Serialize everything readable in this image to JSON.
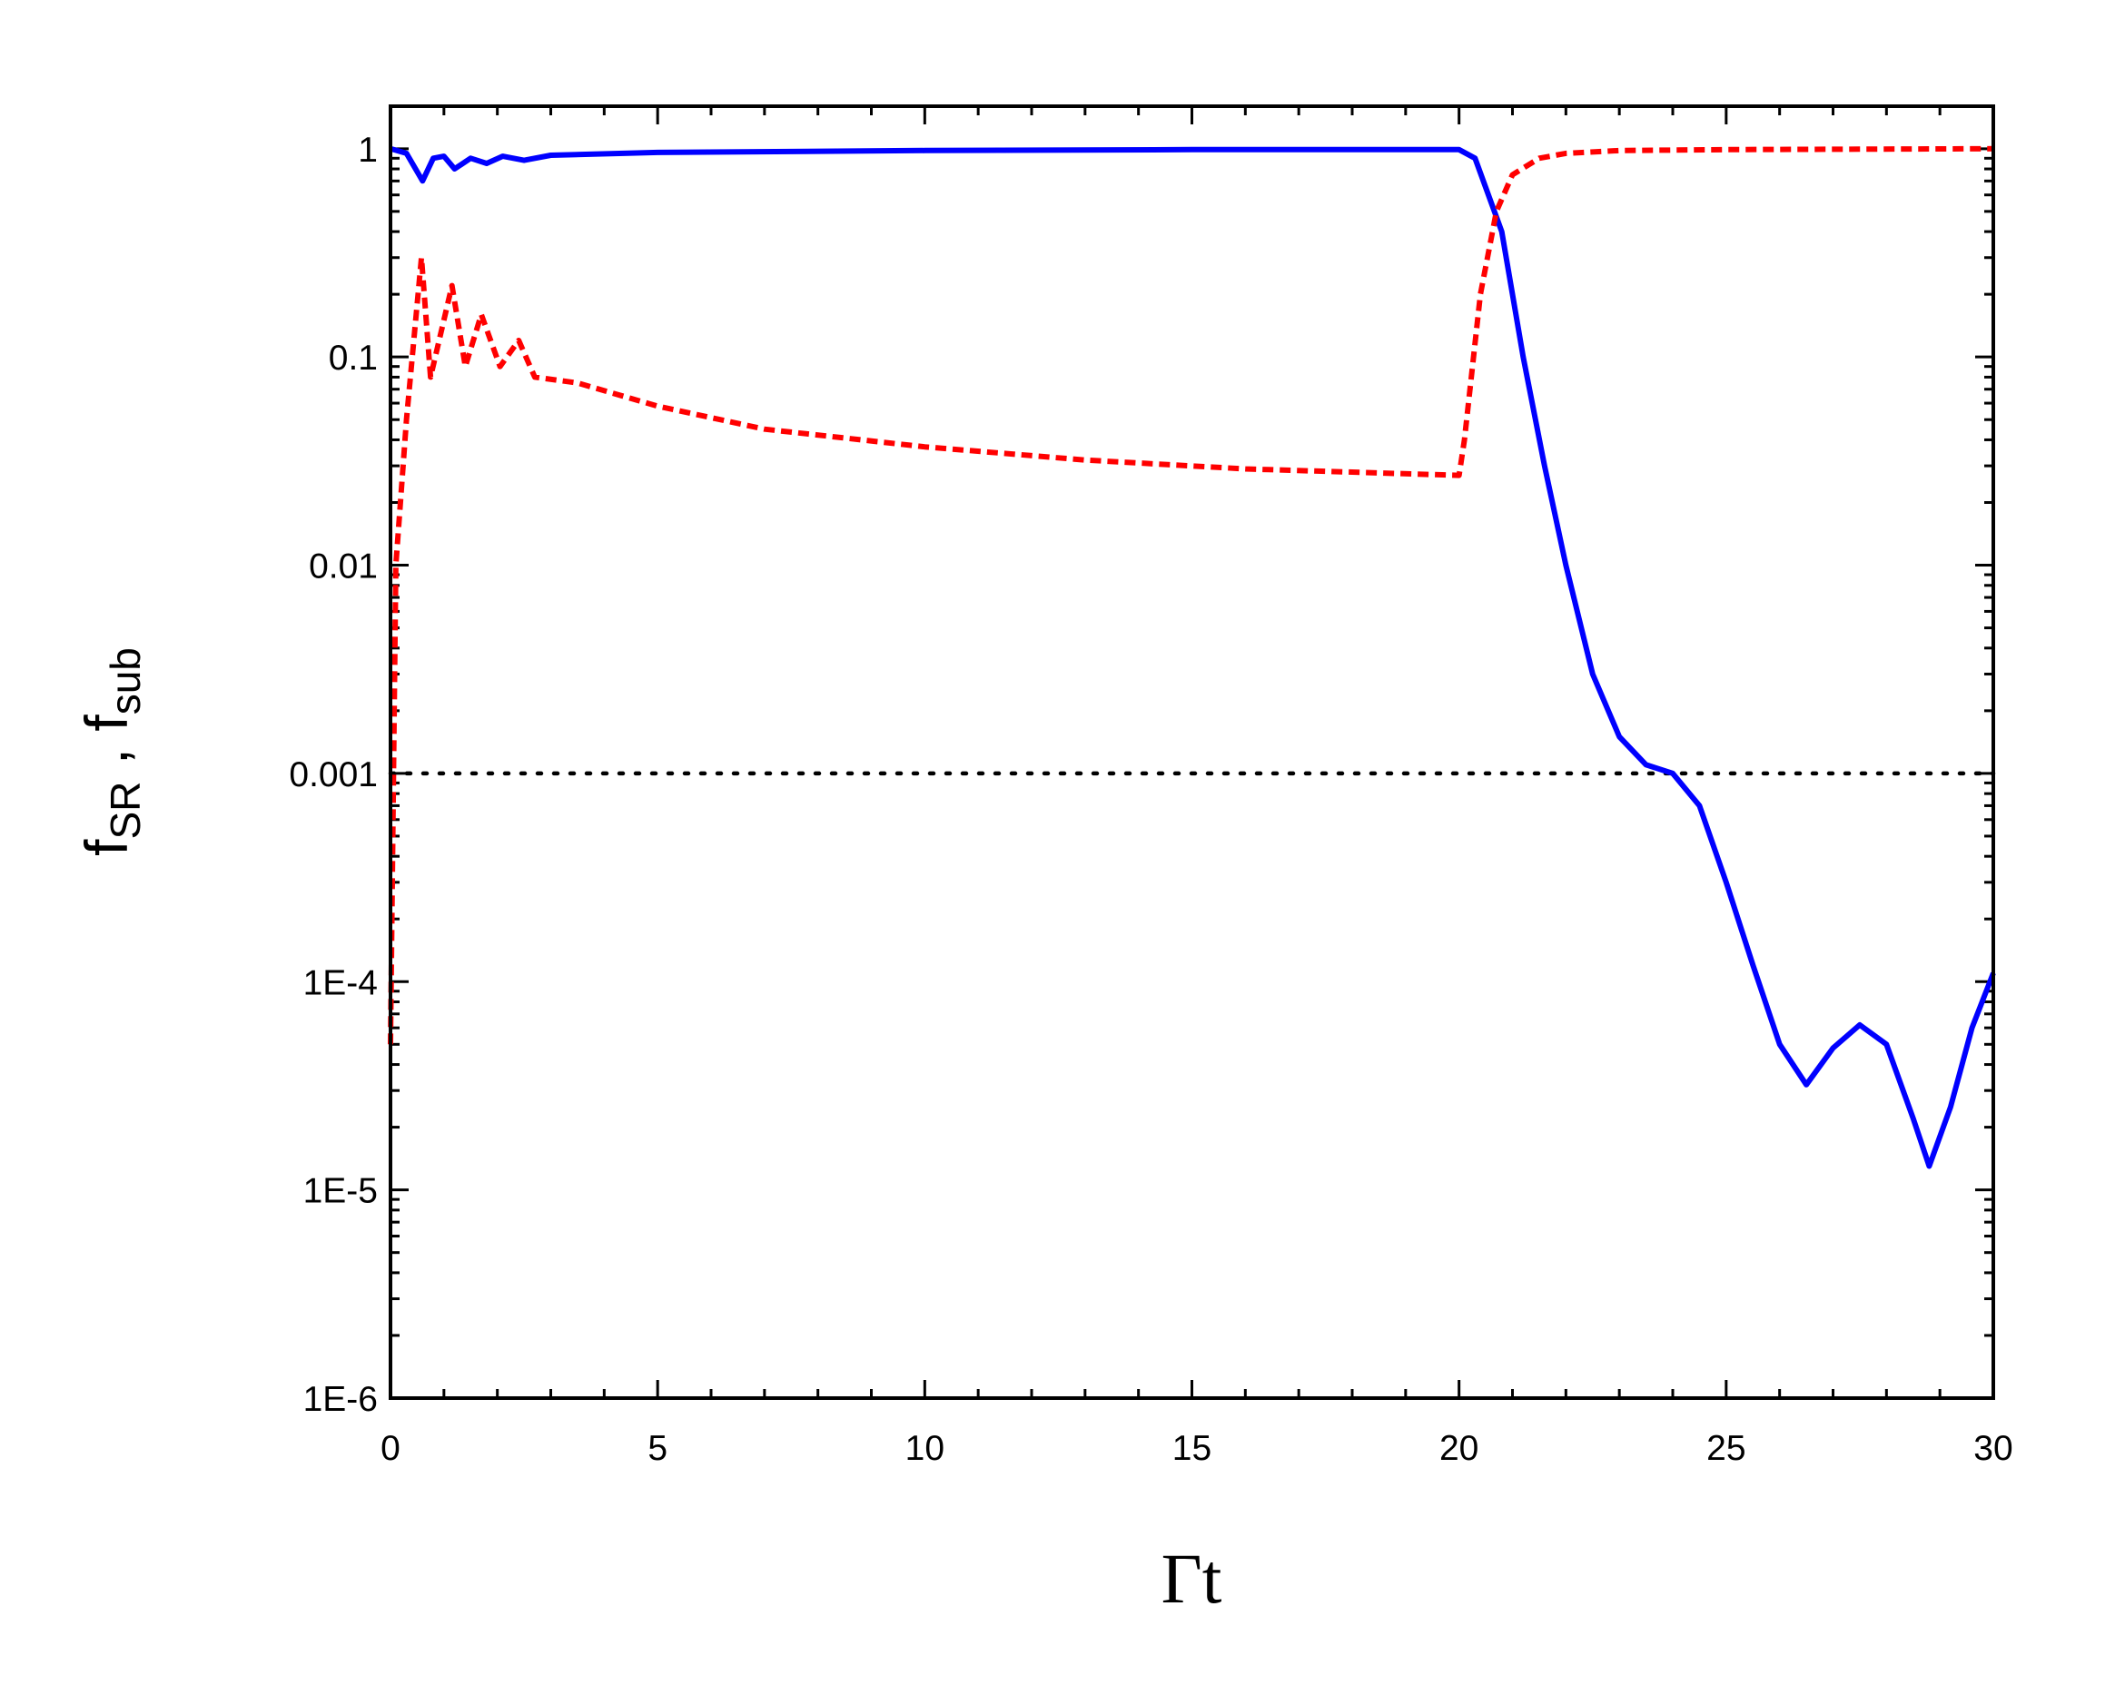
{
  "chart_data": {
    "type": "line",
    "x_label": "Γt",
    "y_label_parts": [
      "f",
      "SR",
      " , f",
      "sub"
    ],
    "xlim": [
      0,
      30
    ],
    "xticks": [
      0,
      5,
      10,
      15,
      20,
      25,
      30
    ],
    "ylim": [
      1e-06,
      1.6
    ],
    "log_y": true,
    "yticks": [
      1,
      0.1,
      0.01,
      0.001,
      {
        "value": 0.0001,
        "label": "1E-4"
      },
      {
        "value": 1e-05,
        "label": "1E-5"
      },
      {
        "value": 1e-06,
        "label": "1E-6"
      }
    ],
    "reference_line": {
      "value": 0.001,
      "color": "#000000",
      "style": "dotted"
    },
    "series": [
      {
        "color": "#0000ff",
        "style": "solid",
        "x": [
          0,
          0.3,
          0.6,
          0.8,
          1.0,
          1.2,
          1.5,
          1.8,
          2.1,
          2.5,
          3,
          5,
          10,
          15,
          20,
          20.3,
          20.8,
          21.2,
          21.6,
          22,
          22.5,
          23,
          23.5,
          24,
          24.5,
          25,
          25.5,
          26,
          26.5,
          27,
          27.5,
          28,
          28.5,
          28.8,
          29.2,
          29.6,
          30
        ],
        "values": [
          1,
          0.95,
          0.7,
          0.9,
          0.92,
          0.8,
          0.9,
          0.85,
          0.92,
          0.88,
          0.93,
          0.96,
          0.98,
          0.99,
          0.99,
          0.9,
          0.4,
          0.1,
          0.03,
          0.01,
          0.003,
          0.0015,
          0.0011,
          0.001,
          0.0007,
          0.0003,
          0.00012,
          5e-05,
          3.2e-05,
          4.8e-05,
          6.2e-05,
          5e-05,
          2.2e-05,
          1.3e-05,
          2.5e-05,
          6e-05,
          0.00011
        ]
      },
      {
        "color": "#ff0000",
        "style": "dashed",
        "x": [
          0,
          0.1,
          0.3,
          0.58,
          0.75,
          1.15,
          1.4,
          1.7,
          2.05,
          2.4,
          2.7,
          3.5,
          5,
          7,
          10,
          13,
          16,
          20,
          20.1,
          20.4,
          20.7,
          21,
          21.5,
          22,
          23,
          25,
          30
        ],
        "values": [
          5e-05,
          0.01,
          0.05,
          0.3,
          0.08,
          0.22,
          0.09,
          0.16,
          0.09,
          0.12,
          0.08,
          0.075,
          0.058,
          0.045,
          0.037,
          0.032,
          0.029,
          0.027,
          0.04,
          0.2,
          0.5,
          0.75,
          0.9,
          0.95,
          0.98,
          0.99,
          1.0
        ]
      }
    ]
  }
}
